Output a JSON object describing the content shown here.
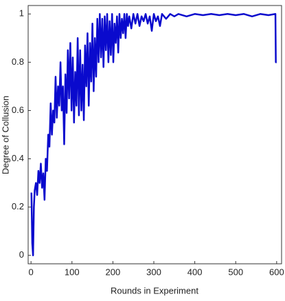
{
  "chart_data": {
    "type": "line",
    "xlabel": "Rounds in Experiment",
    "ylabel": "Degree of Collusion",
    "xlim": [
      -7,
      612
    ],
    "ylim": [
      -0.035,
      1.035
    ],
    "xticks": [
      0,
      100,
      200,
      300,
      400,
      500,
      600
    ],
    "yticks": [
      0,
      0.2,
      0.4,
      0.6,
      0.8,
      1
    ],
    "x": [
      1,
      3,
      5,
      7,
      9,
      12,
      15,
      18,
      21,
      24,
      27,
      30,
      33,
      36,
      39,
      42,
      45,
      48,
      51,
      54,
      57,
      60,
      63,
      66,
      69,
      72,
      75,
      78,
      81,
      84,
      87,
      90,
      93,
      96,
      99,
      102,
      105,
      108,
      111,
      114,
      117,
      120,
      123,
      126,
      129,
      132,
      135,
      138,
      141,
      144,
      147,
      150,
      153,
      156,
      159,
      162,
      165,
      168,
      171,
      174,
      177,
      180,
      183,
      186,
      189,
      192,
      195,
      198,
      201,
      204,
      207,
      210,
      213,
      216,
      219,
      222,
      225,
      228,
      231,
      234,
      237,
      240,
      245,
      250,
      255,
      260,
      265,
      270,
      275,
      280,
      285,
      290,
      295,
      300,
      305,
      310,
      315,
      320,
      330,
      340,
      350,
      360,
      380,
      400,
      420,
      440,
      460,
      480,
      500,
      520,
      540,
      560,
      580,
      597,
      598,
      600
    ],
    "series": [
      {
        "name": "collusion",
        "color": "#0a0acd",
        "values": [
          0.26,
          0.05,
          0.0,
          0.2,
          0.27,
          0.3,
          0.25,
          0.35,
          0.3,
          0.38,
          0.28,
          0.34,
          0.23,
          0.4,
          0.35,
          0.5,
          0.45,
          0.63,
          0.5,
          0.6,
          0.55,
          0.74,
          0.57,
          0.7,
          0.62,
          0.8,
          0.6,
          0.7,
          0.46,
          0.75,
          0.59,
          0.85,
          0.65,
          0.88,
          0.6,
          0.82,
          0.55,
          0.76,
          0.62,
          0.9,
          0.58,
          0.85,
          0.6,
          0.79,
          0.56,
          0.87,
          0.7,
          0.92,
          0.62,
          0.88,
          0.72,
          0.96,
          0.68,
          0.9,
          0.74,
          0.98,
          0.8,
          1.0,
          0.82,
          0.98,
          0.78,
          0.99,
          0.85,
          1.0,
          0.8,
          0.97,
          0.83,
          1.0,
          0.8,
          0.96,
          0.88,
          0.99,
          0.84,
          1.0,
          0.9,
          0.98,
          0.92,
          1.0,
          0.9,
          1.0,
          0.95,
          0.99,
          0.94,
          1.0,
          0.96,
          1.0,
          0.95,
          0.99,
          0.97,
          1.0,
          0.96,
          0.99,
          0.93,
          1.0,
          0.97,
          0.99,
          0.95,
          1.0,
          0.98,
          1.0,
          0.99,
          1.0,
          0.99,
          1.0,
          0.995,
          1.0,
          0.995,
          1.0,
          0.995,
          1.0,
          0.99,
          1.0,
          0.995,
          1.0,
          0.8,
          0.8
        ]
      }
    ]
  }
}
